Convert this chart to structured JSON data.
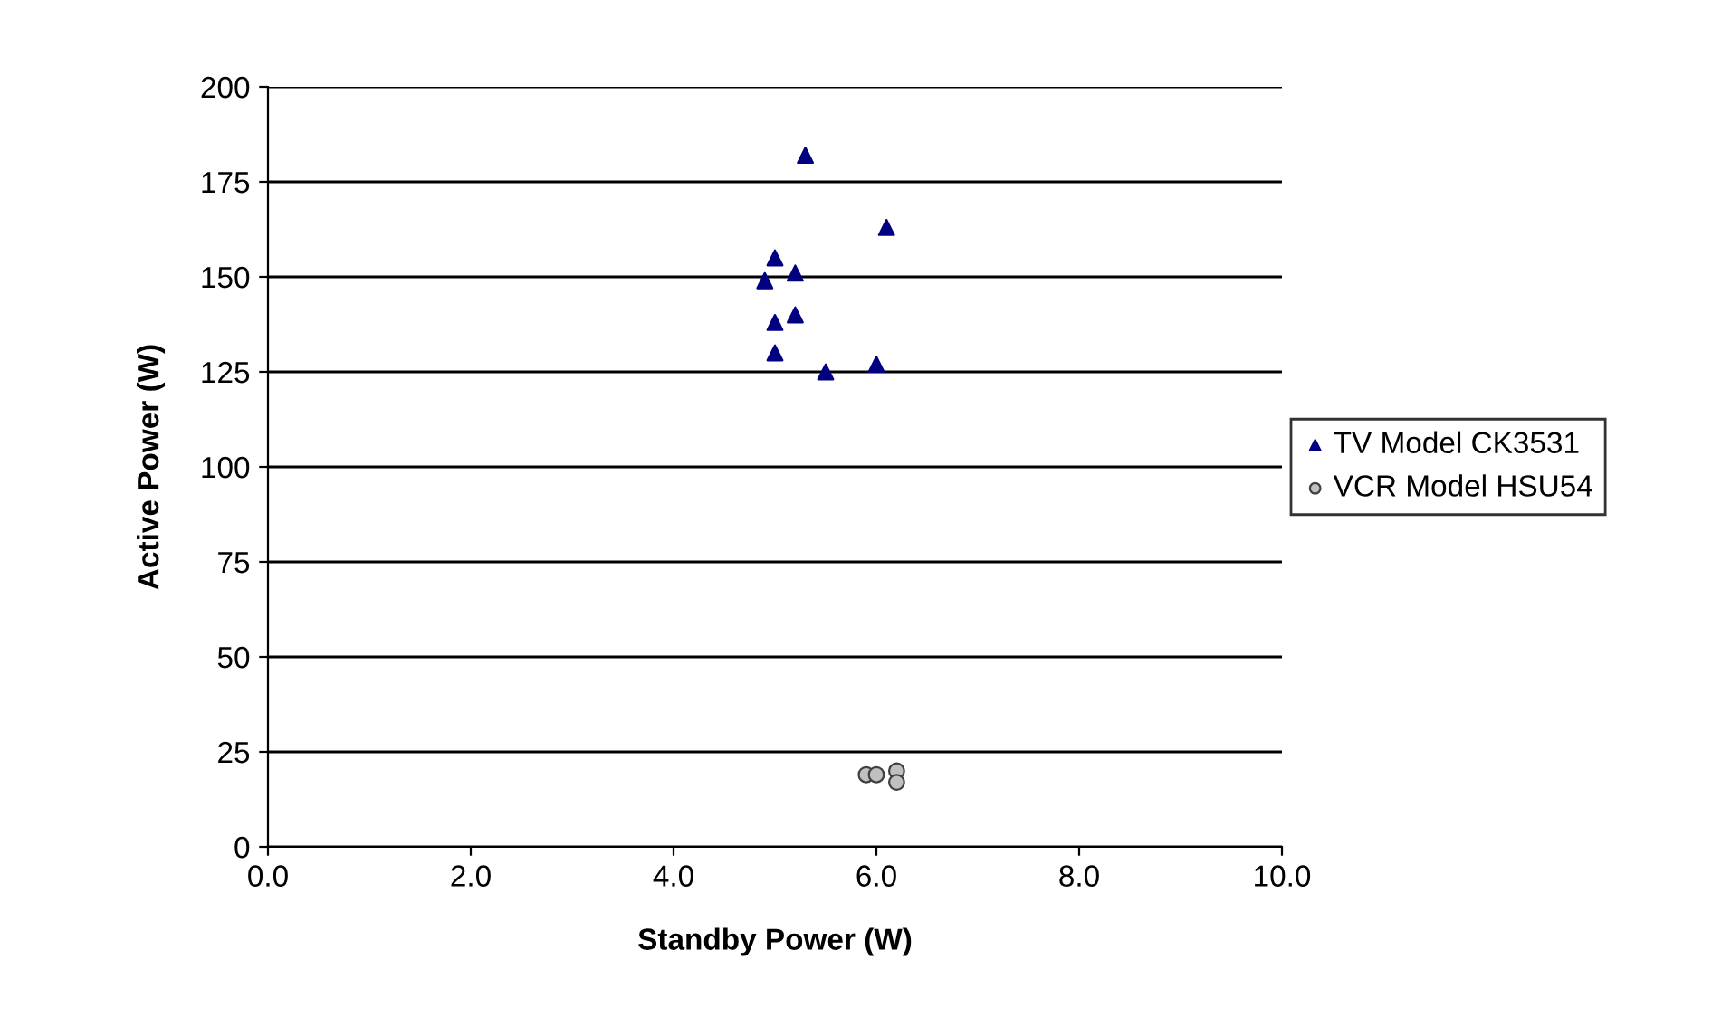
{
  "chart_data": {
    "type": "scatter",
    "xlabel": "Standby Power (W)",
    "ylabel": "Active Power (W)",
    "xlim": [
      0,
      10
    ],
    "xticks": [
      {
        "value": 0,
        "label": "0.0"
      },
      {
        "value": 2,
        "label": "2.0"
      },
      {
        "value": 4,
        "label": "4.0"
      },
      {
        "value": 6,
        "label": "6.0"
      },
      {
        "value": 8,
        "label": "8.0"
      },
      {
        "value": 10,
        "label": "10.0"
      }
    ],
    "ylim": [
      0,
      200
    ],
    "yticks": [
      0,
      25,
      50,
      75,
      100,
      125,
      150,
      175,
      200
    ],
    "grid": "y",
    "legend": "right",
    "series": [
      {
        "name": "TV Model CK3531",
        "color": "#000080",
        "marker": "triangle",
        "x": [
          5.3,
          6.1,
          5.0,
          5.2,
          4.9,
          5.2,
          5.0,
          5.0,
          5.5,
          6.0
        ],
        "values": [
          182,
          163,
          155,
          151,
          149,
          140,
          138,
          130,
          125,
          127
        ]
      },
      {
        "name": "VCR Model HSU54",
        "color": "#c0c0c0",
        "marker": "circle",
        "x": [
          5.9,
          6.0,
          6.2,
          6.2
        ],
        "values": [
          19,
          19,
          20,
          17
        ]
      }
    ]
  }
}
